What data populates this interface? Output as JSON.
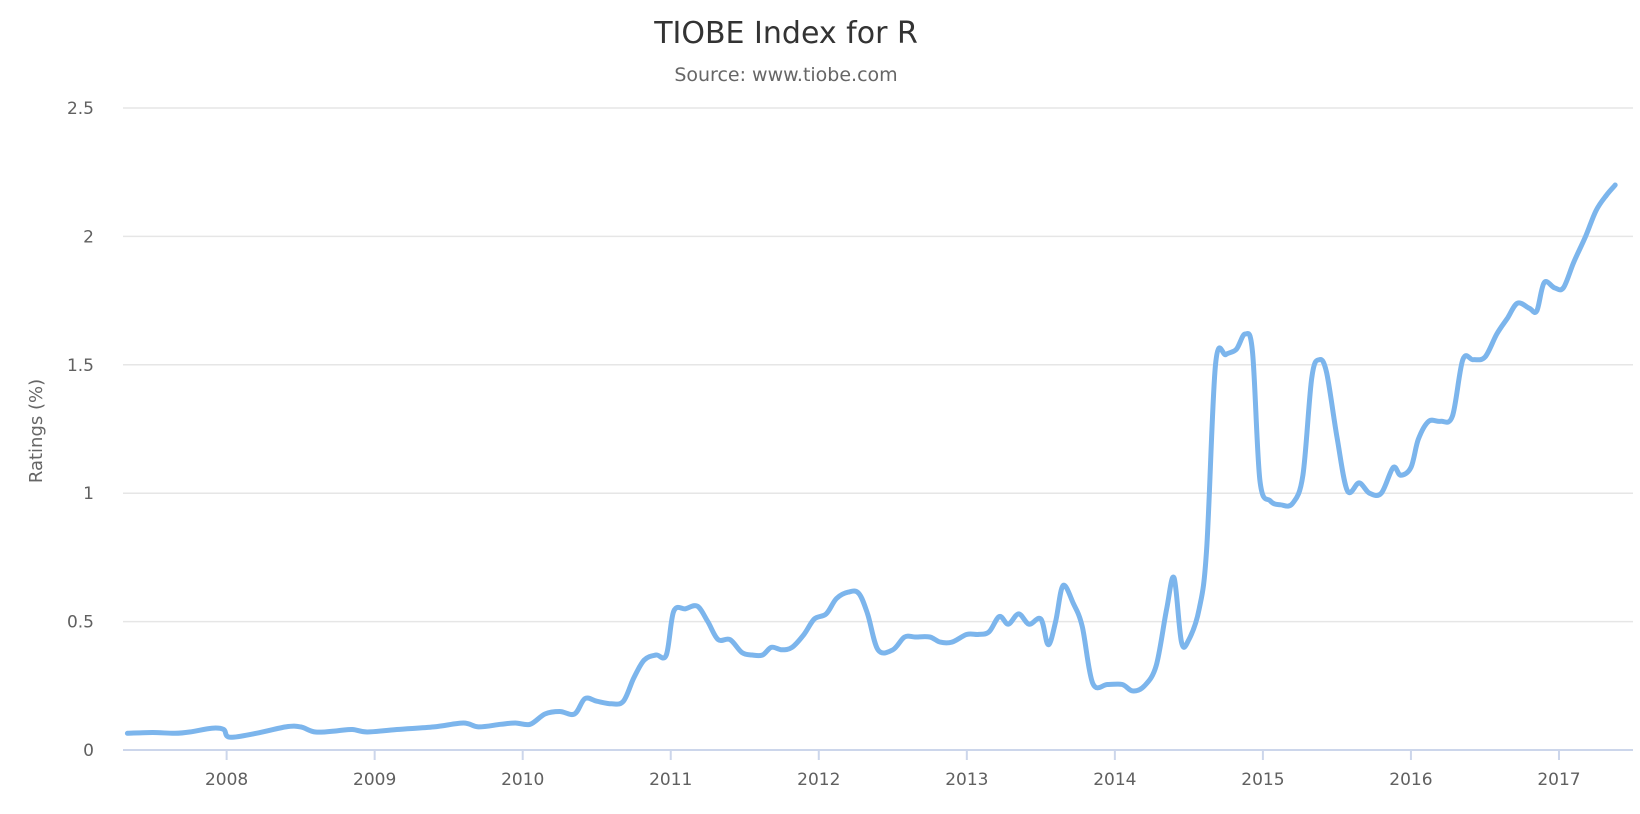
{
  "chart_data": {
    "type": "line",
    "title": "TIOBE Index for R",
    "subtitle": "Source: www.tiobe.com",
    "ylabel": "Ratings (%)",
    "xlabel": "",
    "xlim": [
      2007.3,
      2017.5
    ],
    "ylim": [
      0,
      2.5
    ],
    "grid": true,
    "legend": "none",
    "x_ticks": [
      "2008",
      "2009",
      "2010",
      "2011",
      "2012",
      "2013",
      "2014",
      "2015",
      "2016",
      "2017"
    ],
    "y_ticks": [
      "0",
      "0.5",
      "1",
      "1.5",
      "2",
      "2.5"
    ],
    "series": [
      {
        "color": "#7cb5ec",
        "points": [
          [
            2007.33,
            0.065
          ],
          [
            2007.5,
            0.068
          ],
          [
            2007.65,
            0.065
          ],
          [
            2007.75,
            0.07
          ],
          [
            2007.9,
            0.085
          ],
          [
            2007.98,
            0.08
          ],
          [
            2008.02,
            0.05
          ],
          [
            2008.2,
            0.065
          ],
          [
            2008.4,
            0.09
          ],
          [
            2008.5,
            0.09
          ],
          [
            2008.6,
            0.07
          ],
          [
            2008.75,
            0.075
          ],
          [
            2008.85,
            0.08
          ],
          [
            2008.95,
            0.07
          ],
          [
            2009.15,
            0.08
          ],
          [
            2009.4,
            0.09
          ],
          [
            2009.6,
            0.105
          ],
          [
            2009.7,
            0.09
          ],
          [
            2009.85,
            0.1
          ],
          [
            2009.95,
            0.105
          ],
          [
            2010.05,
            0.1
          ],
          [
            2010.15,
            0.14
          ],
          [
            2010.25,
            0.15
          ],
          [
            2010.35,
            0.14
          ],
          [
            2010.42,
            0.2
          ],
          [
            2010.5,
            0.19
          ],
          [
            2010.6,
            0.18
          ],
          [
            2010.68,
            0.19
          ],
          [
            2010.75,
            0.28
          ],
          [
            2010.82,
            0.35
          ],
          [
            2010.9,
            0.37
          ],
          [
            2010.97,
            0.37
          ],
          [
            2011.02,
            0.54
          ],
          [
            2011.1,
            0.55
          ],
          [
            2011.18,
            0.56
          ],
          [
            2011.25,
            0.5
          ],
          [
            2011.32,
            0.43
          ],
          [
            2011.4,
            0.43
          ],
          [
            2011.48,
            0.38
          ],
          [
            2011.55,
            0.37
          ],
          [
            2011.62,
            0.37
          ],
          [
            2011.68,
            0.4
          ],
          [
            2011.75,
            0.39
          ],
          [
            2011.82,
            0.4
          ],
          [
            2011.9,
            0.45
          ],
          [
            2011.97,
            0.51
          ],
          [
            2012.05,
            0.53
          ],
          [
            2012.12,
            0.59
          ],
          [
            2012.2,
            0.615
          ],
          [
            2012.27,
            0.61
          ],
          [
            2012.33,
            0.53
          ],
          [
            2012.4,
            0.39
          ],
          [
            2012.5,
            0.39
          ],
          [
            2012.58,
            0.44
          ],
          [
            2012.65,
            0.44
          ],
          [
            2012.75,
            0.44
          ],
          [
            2012.82,
            0.42
          ],
          [
            2012.9,
            0.42
          ],
          [
            2013.0,
            0.45
          ],
          [
            2013.08,
            0.45
          ],
          [
            2013.15,
            0.46
          ],
          [
            2013.22,
            0.52
          ],
          [
            2013.28,
            0.49
          ],
          [
            2013.35,
            0.53
          ],
          [
            2013.42,
            0.49
          ],
          [
            2013.5,
            0.51
          ],
          [
            2013.55,
            0.41
          ],
          [
            2013.6,
            0.5
          ],
          [
            2013.65,
            0.64
          ],
          [
            2013.72,
            0.57
          ],
          [
            2013.78,
            0.48
          ],
          [
            2013.85,
            0.26
          ],
          [
            2013.95,
            0.255
          ],
          [
            2014.05,
            0.255
          ],
          [
            2014.12,
            0.23
          ],
          [
            2014.2,
            0.25
          ],
          [
            2014.28,
            0.33
          ],
          [
            2014.35,
            0.55
          ],
          [
            2014.4,
            0.67
          ],
          [
            2014.45,
            0.42
          ],
          [
            2014.5,
            0.43
          ],
          [
            2014.57,
            0.55
          ],
          [
            2014.62,
            0.78
          ],
          [
            2014.68,
            1.5
          ],
          [
            2014.75,
            1.54
          ],
          [
            2014.82,
            1.56
          ],
          [
            2014.88,
            1.62
          ],
          [
            2014.93,
            1.55
          ],
          [
            2014.98,
            1.05
          ],
          [
            2015.05,
            0.97
          ],
          [
            2015.12,
            0.955
          ],
          [
            2015.2,
            0.96
          ],
          [
            2015.27,
            1.07
          ],
          [
            2015.33,
            1.45
          ],
          [
            2015.38,
            1.52
          ],
          [
            2015.43,
            1.47
          ],
          [
            2015.5,
            1.22
          ],
          [
            2015.57,
            1.01
          ],
          [
            2015.65,
            1.04
          ],
          [
            2015.72,
            1.0
          ],
          [
            2015.8,
            1.0
          ],
          [
            2015.88,
            1.1
          ],
          [
            2015.93,
            1.07
          ],
          [
            2016.0,
            1.1
          ],
          [
            2016.05,
            1.21
          ],
          [
            2016.12,
            1.28
          ],
          [
            2016.2,
            1.28
          ],
          [
            2016.28,
            1.3
          ],
          [
            2016.35,
            1.52
          ],
          [
            2016.42,
            1.52
          ],
          [
            2016.5,
            1.53
          ],
          [
            2016.58,
            1.62
          ],
          [
            2016.65,
            1.68
          ],
          [
            2016.72,
            1.74
          ],
          [
            2016.8,
            1.72
          ],
          [
            2016.85,
            1.71
          ],
          [
            2016.9,
            1.82
          ],
          [
            2016.97,
            1.8
          ],
          [
            2017.03,
            1.8
          ],
          [
            2017.1,
            1.9
          ],
          [
            2017.18,
            2.0
          ],
          [
            2017.25,
            2.1
          ],
          [
            2017.32,
            2.16
          ],
          [
            2017.38,
            2.2
          ]
        ]
      }
    ]
  }
}
